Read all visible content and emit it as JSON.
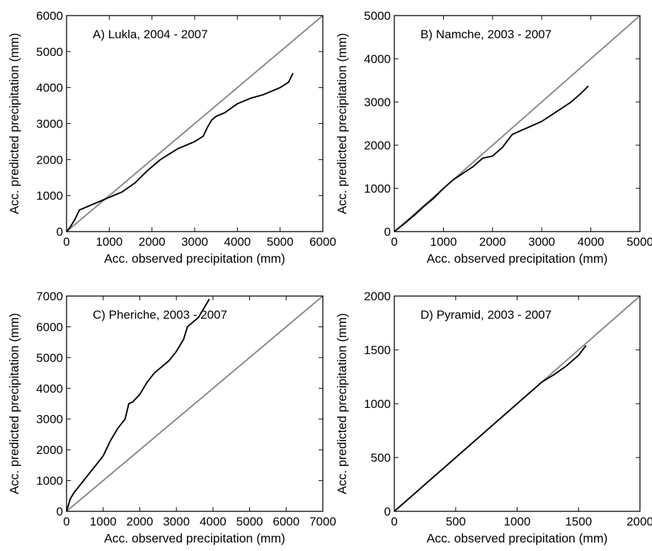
{
  "chart_data": [
    {
      "type": "line",
      "title": "A) Lukla, 2004 - 2007",
      "xlabel": "Acc. observed precipitation (mm)",
      "ylabel": "Acc. predicted precipitation (mm)",
      "xlim": [
        0,
        6000
      ],
      "ylim": [
        0,
        6000
      ],
      "xticks": [
        "0",
        "1000",
        "2000",
        "3000",
        "4000",
        "5000",
        "6000"
      ],
      "yticks": [
        "0",
        "1000",
        "2000",
        "3000",
        "4000",
        "5000",
        "6000"
      ],
      "reference_line": "1:1",
      "series": [
        {
          "color": "#000000",
          "x": [
            0,
            100,
            200,
            300,
            500,
            700,
            1000,
            1300,
            1600,
            1900,
            2200,
            2600,
            3000,
            3200,
            3300,
            3400,
            3500,
            3700,
            4000,
            4300,
            4600,
            4800,
            5000,
            5200,
            5300
          ],
          "y": [
            0,
            150,
            350,
            600,
            700,
            800,
            950,
            1100,
            1350,
            1700,
            2000,
            2300,
            2500,
            2650,
            2900,
            3100,
            3200,
            3300,
            3550,
            3700,
            3800,
            3900,
            4000,
            4150,
            4400
          ]
        }
      ]
    },
    {
      "type": "line",
      "title": "B) Namche, 2003 - 2007",
      "xlabel": "Acc. observed precipitation (mm)",
      "ylabel": "Acc. predicted precipitation (mm)",
      "xlim": [
        0,
        5000
      ],
      "ylim": [
        0,
        5000
      ],
      "xticks": [
        "0",
        "1000",
        "2000",
        "3000",
        "4000",
        "5000"
      ],
      "yticks": [
        "0",
        "1000",
        "2000",
        "3000",
        "4000",
        "5000"
      ],
      "reference_line": "1:1",
      "series": [
        {
          "color": "#000000",
          "x": [
            0,
            200,
            400,
            600,
            800,
            1000,
            1200,
            1400,
            1600,
            1800,
            2000,
            2200,
            2400,
            2600,
            2800,
            3000,
            3200,
            3400,
            3600,
            3800,
            3950
          ],
          "y": [
            0,
            180,
            370,
            580,
            770,
            1000,
            1200,
            1350,
            1500,
            1700,
            1750,
            1950,
            2250,
            2350,
            2450,
            2550,
            2700,
            2850,
            3000,
            3200,
            3370
          ]
        }
      ]
    },
    {
      "type": "line",
      "title": "C) Pheriche, 2003 - 2007",
      "xlabel": "Acc. observed precipitation (mm)",
      "ylabel": "Acc. predicted precipitation (mm)",
      "xlim": [
        0,
        7000
      ],
      "ylim": [
        0,
        7000
      ],
      "xticks": [
        "0",
        "1000",
        "2000",
        "3000",
        "4000",
        "5000",
        "6000",
        "7000"
      ],
      "yticks": [
        "0",
        "1000",
        "2000",
        "3000",
        "4000",
        "5000",
        "6000",
        "7000"
      ],
      "reference_line": "1:1",
      "series": [
        {
          "color": "#000000",
          "x": [
            0,
            50,
            100,
            200,
            400,
            600,
            800,
            1000,
            1200,
            1400,
            1600,
            1700,
            1800,
            2000,
            2200,
            2400,
            2600,
            2800,
            3000,
            3200,
            3300,
            3400,
            3600,
            3800,
            3900
          ],
          "y": [
            0,
            200,
            400,
            600,
            900,
            1200,
            1500,
            1800,
            2300,
            2700,
            3000,
            3500,
            3550,
            3800,
            4200,
            4500,
            4700,
            4900,
            5200,
            5600,
            6000,
            6100,
            6300,
            6700,
            6900
          ]
        }
      ]
    },
    {
      "type": "line",
      "title": "D) Pyramid, 2003 - 2007",
      "xlabel": "Acc. observed precipitation (mm)",
      "ylabel": "Acc. predicted precipitation (mm)",
      "xlim": [
        0,
        2000
      ],
      "ylim": [
        0,
        2000
      ],
      "xticks": [
        "0",
        "500",
        "1000",
        "1500",
        "2000"
      ],
      "yticks": [
        "0",
        "500",
        "1000",
        "1500",
        "2000"
      ],
      "reference_line": "1:1",
      "series": [
        {
          "color": "#000000",
          "x": [
            0,
            100,
            200,
            300,
            400,
            500,
            600,
            700,
            800,
            900,
            1000,
            1100,
            1200,
            1300,
            1400,
            1500,
            1560
          ],
          "y": [
            0,
            100,
            200,
            300,
            400,
            500,
            600,
            700,
            800,
            900,
            1000,
            1100,
            1200,
            1270,
            1350,
            1450,
            1540
          ]
        }
      ]
    }
  ]
}
